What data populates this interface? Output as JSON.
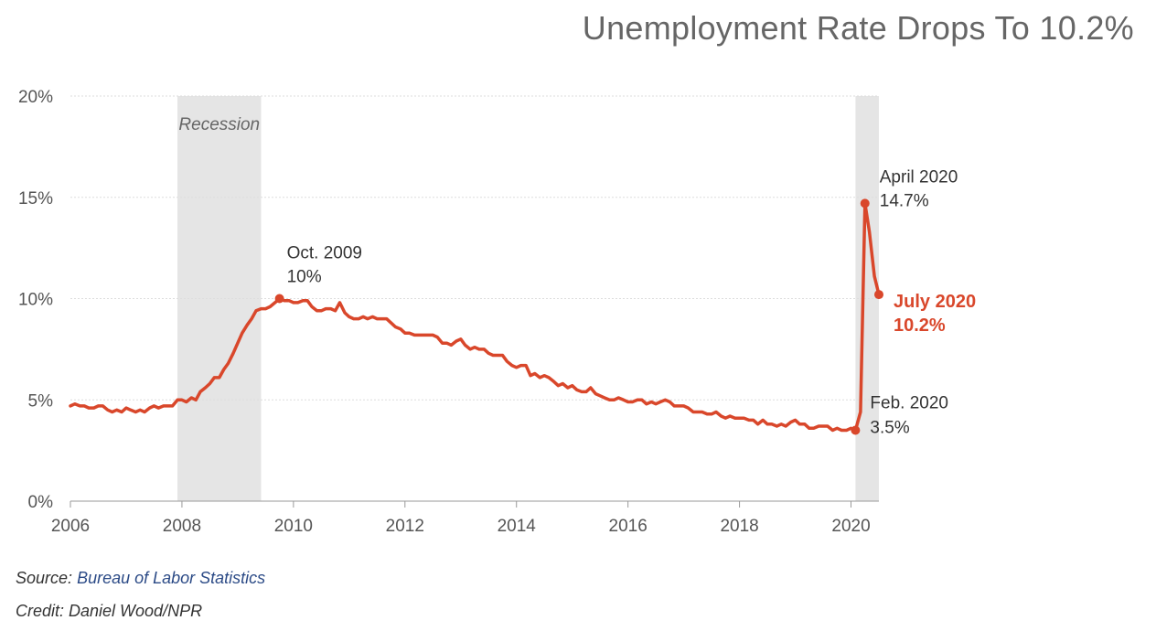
{
  "title": "Unemployment Rate Drops To 10.2%",
  "footer": {
    "source_label": "Source:",
    "source_name": "Bureau of Labor Statistics",
    "credit": "Credit: Daniel Wood/NPR"
  },
  "colors": {
    "line": "#d9472b",
    "grid": "#dddddd",
    "shade": "#e5e5e5",
    "axis": "#999999",
    "text": "#444444"
  },
  "chart_data": {
    "type": "line",
    "title": "Unemployment Rate Drops To 10.2%",
    "xlabel": "",
    "ylabel": "",
    "xlim": [
      2006,
      2020.5
    ],
    "ylim": [
      0,
      20
    ],
    "x_ticks": [
      "2006",
      "2008",
      "2010",
      "2012",
      "2014",
      "2016",
      "2018",
      "2020"
    ],
    "y_ticks": [
      "0%",
      "5%",
      "10%",
      "15%",
      "20%"
    ],
    "grid": true,
    "shaded_regions": [
      {
        "label": "Recession",
        "start": 2007.92,
        "end": 2009.42
      },
      {
        "label": "",
        "start": 2020.08,
        "end": 2020.5
      }
    ],
    "series": [
      {
        "values": [
          [
            2006.0,
            4.7
          ],
          [
            2006.08,
            4.8
          ],
          [
            2006.17,
            4.7
          ],
          [
            2006.25,
            4.7
          ],
          [
            2006.33,
            4.6
          ],
          [
            2006.42,
            4.6
          ],
          [
            2006.5,
            4.7
          ],
          [
            2006.58,
            4.7
          ],
          [
            2006.67,
            4.5
          ],
          [
            2006.75,
            4.4
          ],
          [
            2006.83,
            4.5
          ],
          [
            2006.92,
            4.4
          ],
          [
            2007.0,
            4.6
          ],
          [
            2007.08,
            4.5
          ],
          [
            2007.17,
            4.4
          ],
          [
            2007.25,
            4.5
          ],
          [
            2007.33,
            4.4
          ],
          [
            2007.42,
            4.6
          ],
          [
            2007.5,
            4.7
          ],
          [
            2007.58,
            4.6
          ],
          [
            2007.67,
            4.7
          ],
          [
            2007.75,
            4.7
          ],
          [
            2007.83,
            4.7
          ],
          [
            2007.92,
            5.0
          ],
          [
            2008.0,
            5.0
          ],
          [
            2008.08,
            4.9
          ],
          [
            2008.17,
            5.1
          ],
          [
            2008.25,
            5.0
          ],
          [
            2008.33,
            5.4
          ],
          [
            2008.42,
            5.6
          ],
          [
            2008.5,
            5.8
          ],
          [
            2008.58,
            6.1
          ],
          [
            2008.67,
            6.1
          ],
          [
            2008.75,
            6.5
          ],
          [
            2008.83,
            6.8
          ],
          [
            2008.92,
            7.3
          ],
          [
            2009.0,
            7.8
          ],
          [
            2009.08,
            8.3
          ],
          [
            2009.17,
            8.7
          ],
          [
            2009.25,
            9.0
          ],
          [
            2009.33,
            9.4
          ],
          [
            2009.42,
            9.5
          ],
          [
            2009.5,
            9.5
          ],
          [
            2009.58,
            9.6
          ],
          [
            2009.67,
            9.8
          ],
          [
            2009.75,
            10.0
          ],
          [
            2009.83,
            9.9
          ],
          [
            2009.92,
            9.9
          ],
          [
            2010.0,
            9.8
          ],
          [
            2010.08,
            9.8
          ],
          [
            2010.17,
            9.9
          ],
          [
            2010.25,
            9.9
          ],
          [
            2010.33,
            9.6
          ],
          [
            2010.42,
            9.4
          ],
          [
            2010.5,
            9.4
          ],
          [
            2010.58,
            9.5
          ],
          [
            2010.67,
            9.5
          ],
          [
            2010.75,
            9.4
          ],
          [
            2010.83,
            9.8
          ],
          [
            2010.92,
            9.3
          ],
          [
            2011.0,
            9.1
          ],
          [
            2011.08,
            9.0
          ],
          [
            2011.17,
            9.0
          ],
          [
            2011.25,
            9.1
          ],
          [
            2011.33,
            9.0
          ],
          [
            2011.42,
            9.1
          ],
          [
            2011.5,
            9.0
          ],
          [
            2011.58,
            9.0
          ],
          [
            2011.67,
            9.0
          ],
          [
            2011.75,
            8.8
          ],
          [
            2011.83,
            8.6
          ],
          [
            2011.92,
            8.5
          ],
          [
            2012.0,
            8.3
          ],
          [
            2012.08,
            8.3
          ],
          [
            2012.17,
            8.2
          ],
          [
            2012.25,
            8.2
          ],
          [
            2012.33,
            8.2
          ],
          [
            2012.42,
            8.2
          ],
          [
            2012.5,
            8.2
          ],
          [
            2012.58,
            8.1
          ],
          [
            2012.67,
            7.8
          ],
          [
            2012.75,
            7.8
          ],
          [
            2012.83,
            7.7
          ],
          [
            2012.92,
            7.9
          ],
          [
            2013.0,
            8.0
          ],
          [
            2013.08,
            7.7
          ],
          [
            2013.17,
            7.5
          ],
          [
            2013.25,
            7.6
          ],
          [
            2013.33,
            7.5
          ],
          [
            2013.42,
            7.5
          ],
          [
            2013.5,
            7.3
          ],
          [
            2013.58,
            7.2
          ],
          [
            2013.67,
            7.2
          ],
          [
            2013.75,
            7.2
          ],
          [
            2013.83,
            6.9
          ],
          [
            2013.92,
            6.7
          ],
          [
            2014.0,
            6.6
          ],
          [
            2014.08,
            6.7
          ],
          [
            2014.17,
            6.7
          ],
          [
            2014.25,
            6.2
          ],
          [
            2014.33,
            6.3
          ],
          [
            2014.42,
            6.1
          ],
          [
            2014.5,
            6.2
          ],
          [
            2014.58,
            6.1
          ],
          [
            2014.67,
            5.9
          ],
          [
            2014.75,
            5.7
          ],
          [
            2014.83,
            5.8
          ],
          [
            2014.92,
            5.6
          ],
          [
            2015.0,
            5.7
          ],
          [
            2015.08,
            5.5
          ],
          [
            2015.17,
            5.4
          ],
          [
            2015.25,
            5.4
          ],
          [
            2015.33,
            5.6
          ],
          [
            2015.42,
            5.3
          ],
          [
            2015.5,
            5.2
          ],
          [
            2015.58,
            5.1
          ],
          [
            2015.67,
            5.0
          ],
          [
            2015.75,
            5.0
          ],
          [
            2015.83,
            5.1
          ],
          [
            2015.92,
            5.0
          ],
          [
            2016.0,
            4.9
          ],
          [
            2016.08,
            4.9
          ],
          [
            2016.17,
            5.0
          ],
          [
            2016.25,
            5.0
          ],
          [
            2016.33,
            4.8
          ],
          [
            2016.42,
            4.9
          ],
          [
            2016.5,
            4.8
          ],
          [
            2016.58,
            4.9
          ],
          [
            2016.67,
            5.0
          ],
          [
            2016.75,
            4.9
          ],
          [
            2016.83,
            4.7
          ],
          [
            2016.92,
            4.7
          ],
          [
            2017.0,
            4.7
          ],
          [
            2017.08,
            4.6
          ],
          [
            2017.17,
            4.4
          ],
          [
            2017.25,
            4.4
          ],
          [
            2017.33,
            4.4
          ],
          [
            2017.42,
            4.3
          ],
          [
            2017.5,
            4.3
          ],
          [
            2017.58,
            4.4
          ],
          [
            2017.67,
            4.2
          ],
          [
            2017.75,
            4.1
          ],
          [
            2017.83,
            4.2
          ],
          [
            2017.92,
            4.1
          ],
          [
            2018.0,
            4.1
          ],
          [
            2018.08,
            4.1
          ],
          [
            2018.17,
            4.0
          ],
          [
            2018.25,
            4.0
          ],
          [
            2018.33,
            3.8
          ],
          [
            2018.42,
            4.0
          ],
          [
            2018.5,
            3.8
          ],
          [
            2018.58,
            3.8
          ],
          [
            2018.67,
            3.7
          ],
          [
            2018.75,
            3.8
          ],
          [
            2018.83,
            3.7
          ],
          [
            2018.92,
            3.9
          ],
          [
            2019.0,
            4.0
          ],
          [
            2019.08,
            3.8
          ],
          [
            2019.17,
            3.8
          ],
          [
            2019.25,
            3.6
          ],
          [
            2019.33,
            3.6
          ],
          [
            2019.42,
            3.7
          ],
          [
            2019.5,
            3.7
          ],
          [
            2019.58,
            3.7
          ],
          [
            2019.67,
            3.5
          ],
          [
            2019.75,
            3.6
          ],
          [
            2019.83,
            3.5
          ],
          [
            2019.92,
            3.5
          ],
          [
            2020.0,
            3.6
          ],
          [
            2020.08,
            3.5
          ],
          [
            2020.17,
            4.4
          ],
          [
            2020.25,
            14.7
          ],
          [
            2020.33,
            13.3
          ],
          [
            2020.42,
            11.1
          ],
          [
            2020.5,
            10.2
          ]
        ]
      }
    ],
    "annotations": [
      {
        "x": 2009.75,
        "y": 10.0,
        "line1": "Oct. 2009",
        "line2": "10%",
        "highlight": false
      },
      {
        "x": 2020.25,
        "y": 14.7,
        "line1": "April 2020",
        "line2": "14.7%",
        "highlight": false
      },
      {
        "x": 2020.08,
        "y": 3.5,
        "line1": "Feb. 2020",
        "line2": "3.5%",
        "highlight": false
      },
      {
        "x": 2020.5,
        "y": 10.2,
        "line1": "July 2020",
        "line2": "10.2%",
        "highlight": true
      }
    ]
  }
}
